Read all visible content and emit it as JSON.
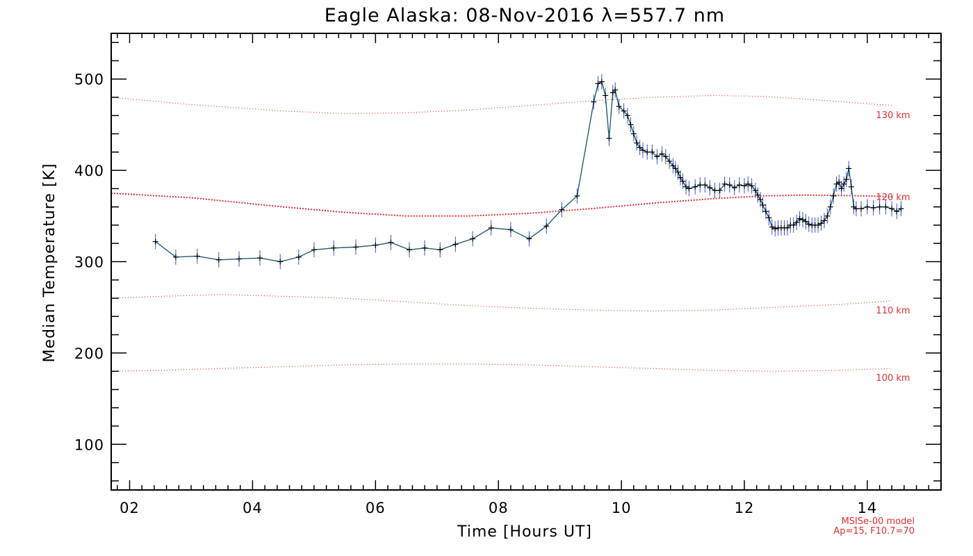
{
  "chart_data": {
    "type": "line",
    "title": "Eagle Alaska: 08-Nov-2016 λ=557.7 nm",
    "xlabel": "Time [Hours UT]",
    "ylabel": "Median Temperature [K]",
    "xlim": [
      1.7,
      15.2
    ],
    "ylim": [
      50,
      550
    ],
    "x_tick_labels": [
      "02",
      "04",
      "06",
      "08",
      "10",
      "12",
      "14"
    ],
    "y_tick_labels": [
      "100",
      "200",
      "300",
      "400",
      "500"
    ],
    "note_lines": [
      "MSISe-00 model",
      "Ap=15, F10.7=70"
    ],
    "colors": {
      "series": "#1a3f6b",
      "error_bars": "#3a4fe0",
      "reference": "#e03030"
    },
    "reference_curves": [
      {
        "label": "130 km",
        "x": [
          1.7,
          3,
          4.5,
          5.5,
          6.5,
          7.5,
          8.5,
          9.5,
          10.5,
          11.5,
          12.3,
          13,
          14,
          14.4
        ],
        "y": [
          480,
          472,
          465,
          462,
          463,
          466,
          471,
          476,
          480,
          482,
          481,
          478,
          473,
          471
        ]
      },
      {
        "label": "120 km",
        "x": [
          1.7,
          3,
          4.5,
          5.5,
          6.5,
          7.5,
          8.5,
          9.5,
          10.5,
          11.5,
          12.3,
          13,
          14,
          14.4
        ],
        "y": [
          375,
          370,
          360,
          354,
          350,
          350,
          353,
          358,
          364,
          369,
          372,
          373,
          372,
          371
        ]
      },
      {
        "label": "110 km",
        "x": [
          1.7,
          2.5,
          3.5,
          4.5,
          5.5,
          6.5,
          7.5,
          8.5,
          9.5,
          10.5,
          11.5,
          12.5,
          13.5,
          14.4
        ],
        "y": [
          260,
          262,
          264,
          262,
          260,
          256,
          252,
          249,
          247,
          246,
          247,
          250,
          253,
          257
        ]
      },
      {
        "label": "100 km",
        "x": [
          1.7,
          2.5,
          3.5,
          4.5,
          5.5,
          6.5,
          7.5,
          8.5,
          9.5,
          10.5,
          11.5,
          12.5,
          13.5,
          14.4
        ],
        "y": [
          180,
          181,
          183,
          185,
          187,
          188,
          188,
          187,
          185,
          183,
          181,
          180,
          181,
          183
        ]
      }
    ],
    "series": [
      {
        "x": [
          2.42,
          2.75,
          3.1,
          3.45,
          3.78,
          4.12,
          4.45,
          4.75,
          5.0,
          5.32,
          5.68,
          6.0,
          6.25,
          6.55,
          6.8,
          7.05,
          7.3,
          7.58,
          7.88,
          8.2,
          8.5,
          8.78,
          9.03,
          9.28,
          9.55,
          9.62,
          9.68,
          9.74,
          9.8,
          9.86,
          9.9,
          9.96,
          10.04,
          10.1,
          10.15,
          10.2,
          10.25,
          10.3,
          10.35,
          10.42,
          10.5,
          10.58,
          10.66,
          10.72,
          10.78,
          10.84,
          10.88,
          10.92,
          10.96,
          11.0,
          11.05,
          11.1,
          11.2,
          11.28,
          11.36,
          11.44,
          11.52,
          11.6,
          11.68,
          11.76,
          11.84,
          11.92,
          12.0,
          12.06,
          12.12,
          12.18,
          12.22,
          12.26,
          12.3,
          12.35,
          12.4,
          12.45,
          12.5,
          12.55,
          12.6,
          12.65,
          12.7,
          12.75,
          12.8,
          12.85,
          12.9,
          12.95,
          13.0,
          13.05,
          13.1,
          13.15,
          13.2,
          13.25,
          13.3,
          13.35,
          13.4,
          13.45,
          13.5,
          13.54,
          13.58,
          13.62,
          13.66,
          13.7,
          13.74,
          13.78,
          13.82,
          13.9,
          14.0,
          14.1,
          14.2,
          14.3,
          14.4,
          14.48,
          14.55
        ],
        "y": [
          322,
          305,
          306,
          302,
          303,
          304,
          300,
          305,
          313,
          315,
          316,
          318,
          321,
          313,
          315,
          313,
          319,
          325,
          337,
          335,
          325,
          339,
          357,
          372,
          475,
          495,
          497,
          482,
          435,
          485,
          488,
          470,
          465,
          460,
          450,
          440,
          430,
          425,
          422,
          420,
          420,
          415,
          418,
          415,
          410,
          405,
          402,
          398,
          392,
          388,
          382,
          380,
          382,
          384,
          384,
          381,
          378,
          378,
          385,
          384,
          381,
          384,
          383,
          385,
          383,
          378,
          373,
          368,
          362,
          355,
          348,
          338,
          336,
          337,
          337,
          337,
          337,
          340,
          340,
          343,
          347,
          346,
          344,
          341,
          340,
          340,
          340,
          342,
          345,
          350,
          360,
          372,
          385,
          387,
          380,
          385,
          390,
          402,
          382,
          360,
          358,
          358,
          360,
          359,
          360,
          360,
          358,
          355,
          358
        ]
      }
    ]
  }
}
